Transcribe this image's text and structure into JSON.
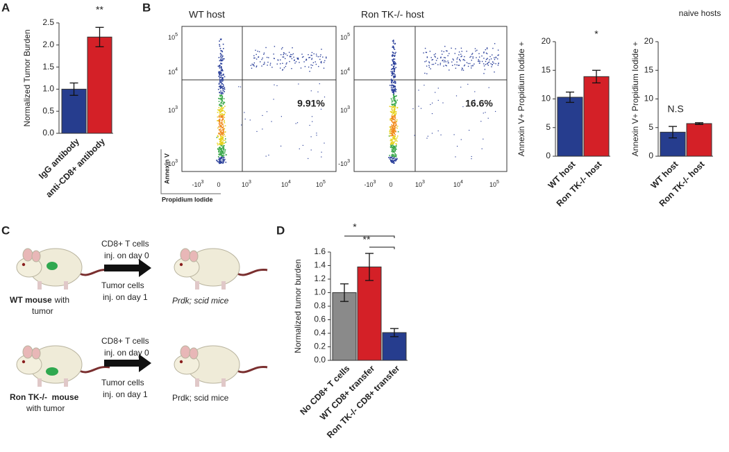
{
  "panels": [
    "A",
    "B",
    "C",
    "D"
  ],
  "chart_data": [
    {
      "type": "bar",
      "ylabel": "Normalized Tumor Burden",
      "categories": [
        "IgG antibody",
        "anti-CD8+ antibody"
      ],
      "values": [
        1.0,
        2.18
      ],
      "errors": [
        0.14,
        0.22
      ],
      "colors": [
        "#263d8e",
        "#d42027"
      ],
      "ylim": [
        0,
        2.5
      ],
      "yticks": [
        {
          "value": 0,
          "label": "0.0"
        },
        0.5,
        {
          "value": 1,
          "label": "1.0"
        },
        1.5,
        {
          "value": 2,
          "label": "2.0"
        },
        2.5
      ],
      "annotations": [
        "**"
      ]
    },
    {
      "type": "bar",
      "ylabel": "Annexin V+ Propidium Iodide +",
      "categories": [
        "WT host",
        "Ron TK-/- host"
      ],
      "values": [
        10.3,
        13.9
      ],
      "errors": [
        0.9,
        1.1
      ],
      "colors": [
        "#263d8e",
        "#d42027"
      ],
      "ylim": [
        0,
        20
      ],
      "yticks": [
        0,
        5,
        10,
        15,
        20
      ],
      "annotations": [
        "*"
      ]
    },
    {
      "type": "bar",
      "title": "naive hosts",
      "ylabel": "Annexin V+ Propidium Iodide +",
      "categories": [
        "WT host",
        "Ron TK-/- host"
      ],
      "values": [
        4.2,
        5.7
      ],
      "errors": [
        1.0,
        0.15
      ],
      "colors": [
        "#263d8e",
        "#d42027"
      ],
      "ylim": [
        0,
        20
      ],
      "yticks": [
        0,
        5,
        10,
        15,
        20
      ],
      "annotations": [
        "N.S"
      ]
    },
    {
      "type": "bar",
      "ylabel": "Normalized tumor burden",
      "categories": [
        "No CD8+ T cells",
        "WT CD8+ transfer",
        "Ron TK-/- CD8+ transfer"
      ],
      "values": [
        1.0,
        1.38,
        0.41
      ],
      "errors": [
        0.13,
        0.2,
        0.06
      ],
      "colors": [
        "#8a8a8a",
        "#d42027",
        "#263d8e"
      ],
      "ylim": [
        0,
        1.6
      ],
      "yticks": [
        {
          "value": 0,
          "label": "0.0"
        },
        0.2,
        0.4,
        0.6,
        0.8,
        {
          "value": 1,
          "label": "1.0"
        },
        1.2,
        1.4,
        1.6
      ],
      "annotations": [
        "*",
        "**"
      ]
    }
  ],
  "flow_plots": [
    {
      "title": "WT host",
      "percent": "9.91%"
    },
    {
      "title": "Ron TK-/- host",
      "percent": "16.6%"
    }
  ],
  "flow_axes": {
    "y_label": "Annexin V",
    "x_label": "Propidium Iodide",
    "y_ticks": [
      {
        "base": "10",
        "exp": "5"
      },
      {
        "base": "10",
        "exp": "4"
      },
      {
        "base": "10",
        "exp": "3"
      },
      {
        "base": "-10",
        "exp": "3"
      }
    ],
    "x_ticks": [
      {
        "base": "-10",
        "exp": "3"
      },
      {
        "base": "0"
      },
      {
        "base": "10",
        "exp": "3"
      },
      {
        "base": "10",
        "exp": "4"
      },
      {
        "base": "10",
        "exp": "5"
      }
    ]
  },
  "diagram": {
    "rows": [
      {
        "cd8": "CD8+ T cells",
        "cd8_day": "inj. on day 0",
        "tumor": "Tumor cells",
        "tumor_day": "inj. on day 1",
        "donor_bold": "WT mouse",
        "donor_rest": "with",
        "donor_line2": "tumor",
        "recipient": "Prdk; scid mice"
      },
      {
        "cd8": "CD8+ T cells",
        "cd8_day": "inj. on day 0",
        "tumor": "Tumor cells",
        "tumor_day": "inj. on day 1",
        "donor_bold": "Ron TK-/-  mouse",
        "donor_line2": "with tumor",
        "recipient": "Prdk; scid mice"
      }
    ]
  }
}
